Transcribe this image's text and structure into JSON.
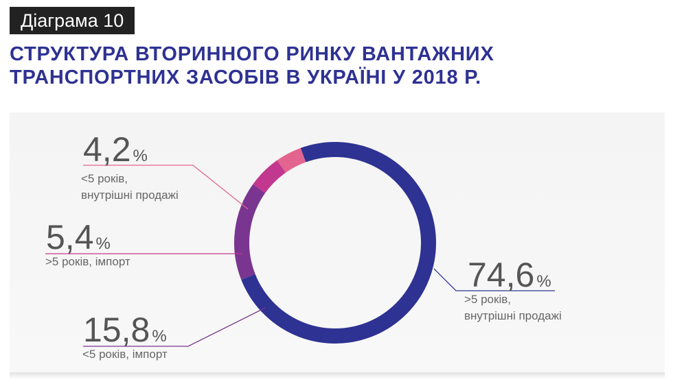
{
  "badge": "Діаграма 10",
  "title": {
    "line1": "СТРУКТУРА ВТОРИННОГО РИНКУ ВАНТАЖНИХ",
    "line2": "ТРАНСПОРТНИХ ЗАСОБІВ В УКРАЇНІ У 2018 Р."
  },
  "chart_data": {
    "type": "pie",
    "variant": "donut",
    "unit": "%",
    "slices": [
      {
        "value_label": "74,6",
        "value": 74.6,
        "label_lines": [
          ">5 років,",
          "внутрішні продажі"
        ],
        "color": "#2e3292"
      },
      {
        "value_label": "15,8",
        "value": 15.8,
        "label_lines": [
          "<5 років, імпорт"
        ],
        "color": "#7a3590"
      },
      {
        "value_label": "5,4",
        "value": 5.4,
        "label_lines": [
          ">5 років, імпорт"
        ],
        "color": "#c2388f"
      },
      {
        "value_label": "4,2",
        "value": 4.2,
        "label_lines": [
          "<5 років,",
          "внутрішні продажі"
        ],
        "color": "#e3648f"
      }
    ]
  }
}
